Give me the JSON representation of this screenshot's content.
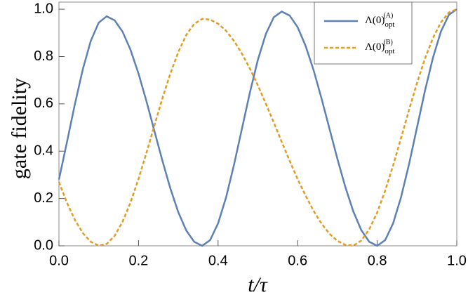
{
  "chart_data": {
    "type": "line",
    "xlabel": "t/τ",
    "ylabel": "gate fidelity",
    "x": [
      0,
      0.02,
      0.04,
      0.06,
      0.08,
      0.1,
      0.12,
      0.14,
      0.16,
      0.18,
      0.2,
      0.22,
      0.24,
      0.26,
      0.28,
      0.3,
      0.32,
      0.34,
      0.36,
      0.38,
      0.4,
      0.42,
      0.44,
      0.46,
      0.48,
      0.5,
      0.52,
      0.54,
      0.56,
      0.58,
      0.6,
      0.62,
      0.64,
      0.66,
      0.68,
      0.7,
      0.72,
      0.74,
      0.76,
      0.78,
      0.8,
      0.82,
      0.84,
      0.86,
      0.88,
      0.9,
      0.92,
      0.94,
      0.96,
      0.98,
      1
    ],
    "series": [
      {
        "name": "Λ(0)",
        "name_sub": "opt",
        "name_sup": "(A)",
        "color": "#5e81b5",
        "dash": false,
        "values": [
          0.28,
          0.437,
          0.598,
          0.746,
          0.866,
          0.943,
          0.97,
          0.953,
          0.905,
          0.828,
          0.728,
          0.611,
          0.485,
          0.36,
          0.243,
          0.142,
          0.065,
          0.017,
          0,
          0.024,
          0.095,
          0.204,
          0.342,
          0.495,
          0.648,
          0.786,
          0.895,
          0.966,
          0.99,
          0.973,
          0.924,
          0.845,
          0.743,
          0.623,
          0.495,
          0.367,
          0.248,
          0.145,
          0.066,
          0.017,
          0,
          0.024,
          0.095,
          0.206,
          0.345,
          0.5,
          0.655,
          0.794,
          0.905,
          0.976,
          1
        ]
      },
      {
        "name": "Λ(0)",
        "name_sub": "opt",
        "name_sup": "(B)",
        "color": "#e19c24",
        "dash": true,
        "values": [
          0.27,
          0.183,
          0.11,
          0.054,
          0.017,
          0.001,
          0.008,
          0.042,
          0.102,
          0.184,
          0.283,
          0.393,
          0.509,
          0.623,
          0.728,
          0.819,
          0.891,
          0.938,
          0.959,
          0.956,
          0.939,
          0.909,
          0.866,
          0.812,
          0.749,
          0.678,
          0.601,
          0.521,
          0.439,
          0.359,
          0.282,
          0.212,
          0.148,
          0.094,
          0.051,
          0.021,
          0.004,
          0.001,
          0.022,
          0.07,
          0.141,
          0.233,
          0.34,
          0.456,
          0.574,
          0.688,
          0.791,
          0.878,
          0.944,
          0.986,
          1
        ]
      }
    ],
    "xlim": [
      0,
      1
    ],
    "ylim": [
      0,
      1.03
    ],
    "xticks": [
      {
        "value": 0,
        "label": "0.0"
      },
      0.2,
      0.4,
      0.6,
      0.8,
      {
        "value": 1,
        "label": "1.0"
      }
    ],
    "yticks": [
      {
        "value": 0,
        "label": "0.0"
      },
      0.2,
      0.4,
      0.6,
      0.8,
      {
        "value": 1,
        "label": "1.0"
      }
    ],
    "grid": false,
    "legend": "upper right"
  }
}
